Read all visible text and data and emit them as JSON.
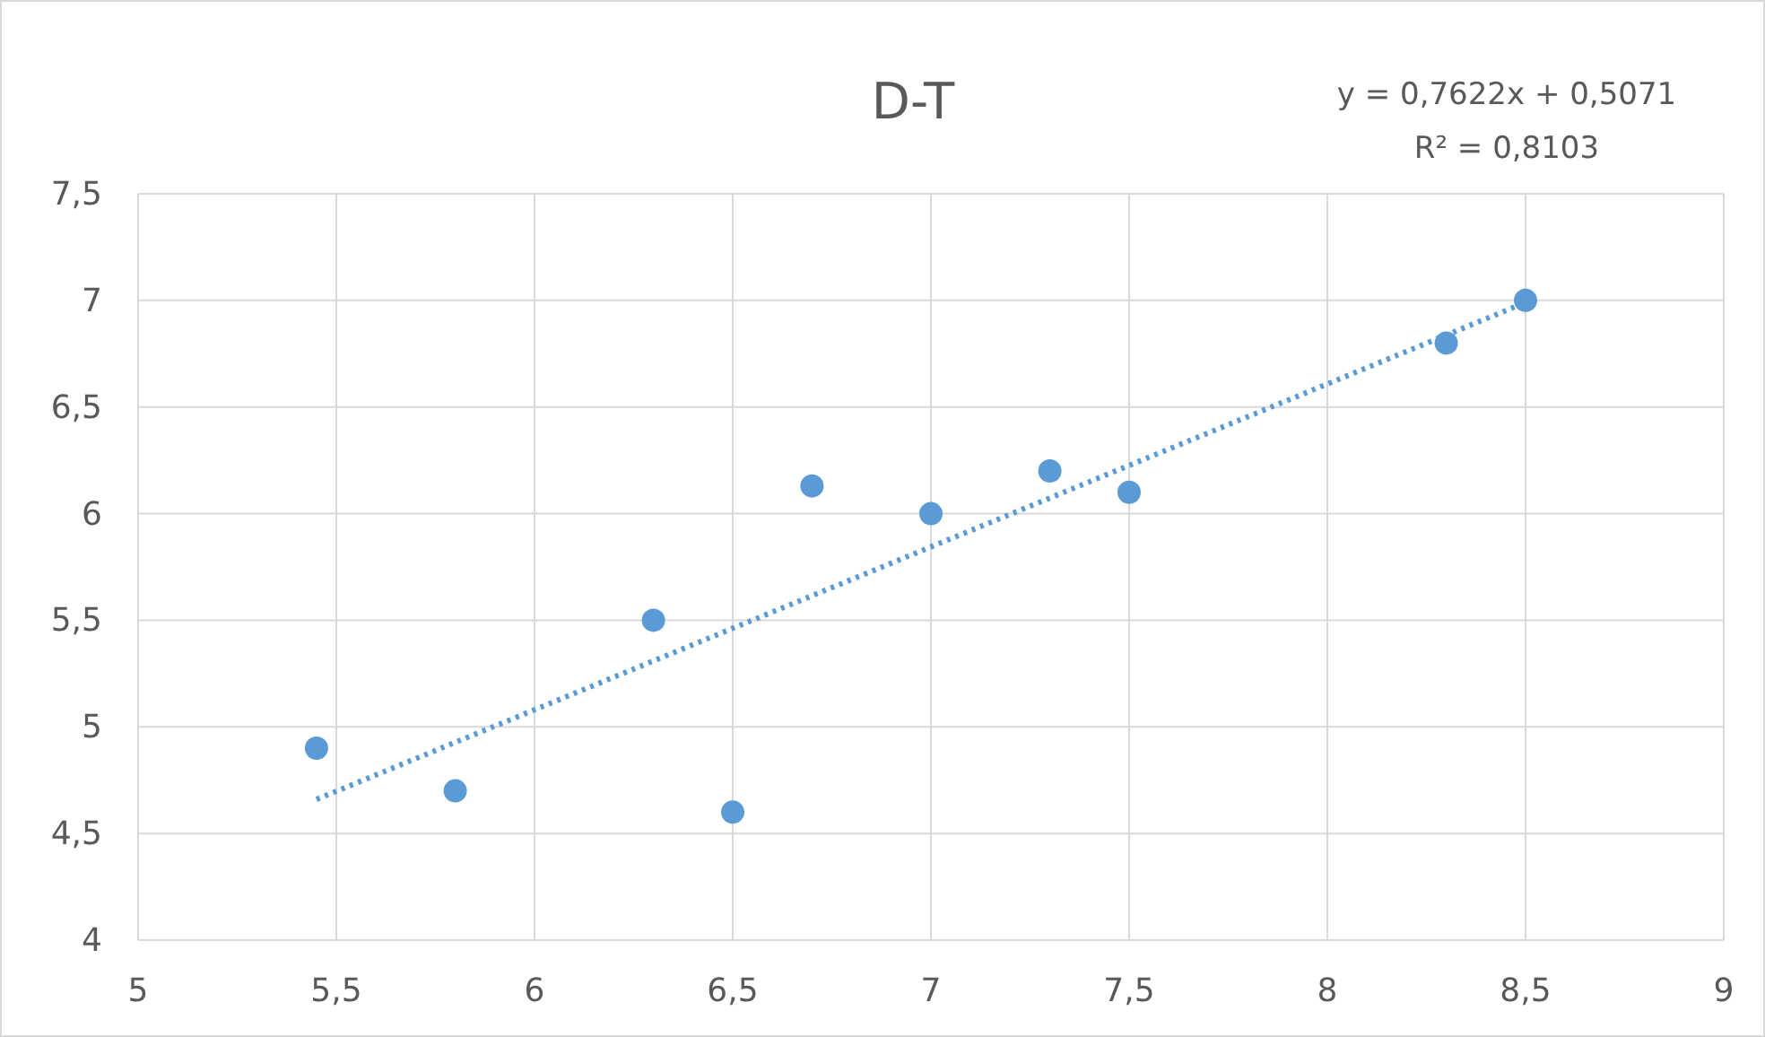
{
  "chart_data": {
    "type": "scatter",
    "title": "D-T",
    "annotations": [
      "y = 0,7622x + 0,5071",
      "R² = 0,8103"
    ],
    "xlim": [
      5,
      9
    ],
    "xticks": [
      5,
      {
        "value": 5.5,
        "label": "5,5"
      },
      6,
      {
        "value": 6.5,
        "label": "6,5"
      },
      7,
      {
        "value": 7.5,
        "label": "7,5"
      },
      8,
      {
        "value": 8.5,
        "label": "8,5"
      },
      9
    ],
    "ylim": [
      4,
      7.5
    ],
    "yticks": [
      4,
      {
        "value": 4.5,
        "label": "4,5"
      },
      5,
      {
        "value": 5.5,
        "label": "5,5"
      },
      6,
      {
        "value": 6.5,
        "label": "6,5"
      },
      7,
      {
        "value": 7.5,
        "label": "7,5"
      }
    ],
    "grid": true,
    "series": [
      {
        "color": "#5b9bd5",
        "marker": "circle",
        "x": [
          5.45,
          5.8,
          6.3,
          6.5,
          6.7,
          7.0,
          7.3,
          7.5,
          8.3,
          8.5
        ],
        "values": [
          4.9,
          4.7,
          5.5,
          4.6,
          6.13,
          6.0,
          6.2,
          6.1,
          6.8,
          7.0
        ]
      },
      {
        "type": "line",
        "color": "#5b9bd5",
        "marker": "none",
        "line_style": "dotted",
        "x": [
          5.45,
          8.5
        ],
        "values": [
          4.66,
          6.99
        ]
      }
    ]
  }
}
